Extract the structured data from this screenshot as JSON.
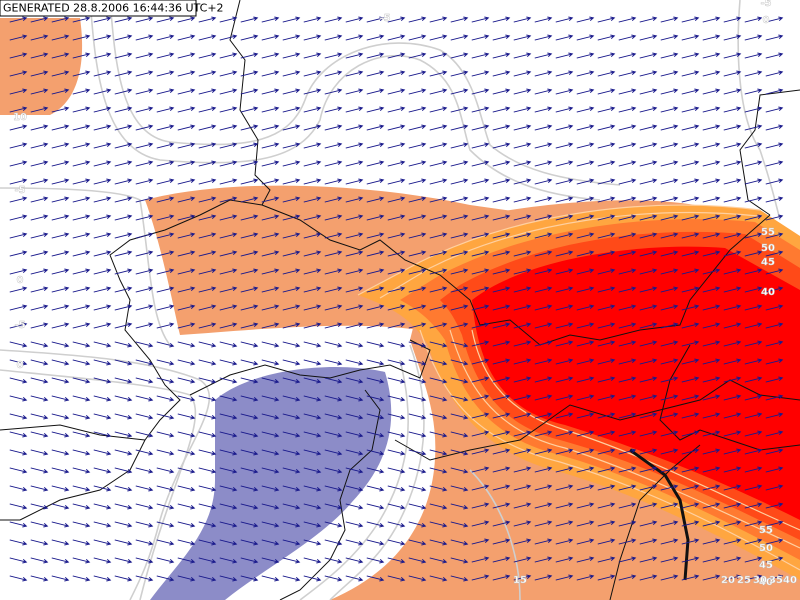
{
  "header": {
    "generated": "GENERATED 28.8.2006 16:44:36 UTC+2"
  },
  "contour_labels": [
    "10",
    "-5",
    "0",
    "-5",
    "0",
    "-5",
    "-5",
    "0",
    "55",
    "50",
    "45",
    "40",
    "15",
    "55",
    "50",
    "45",
    "40",
    "20",
    "25",
    "30",
    "35",
    "40"
  ]
}
